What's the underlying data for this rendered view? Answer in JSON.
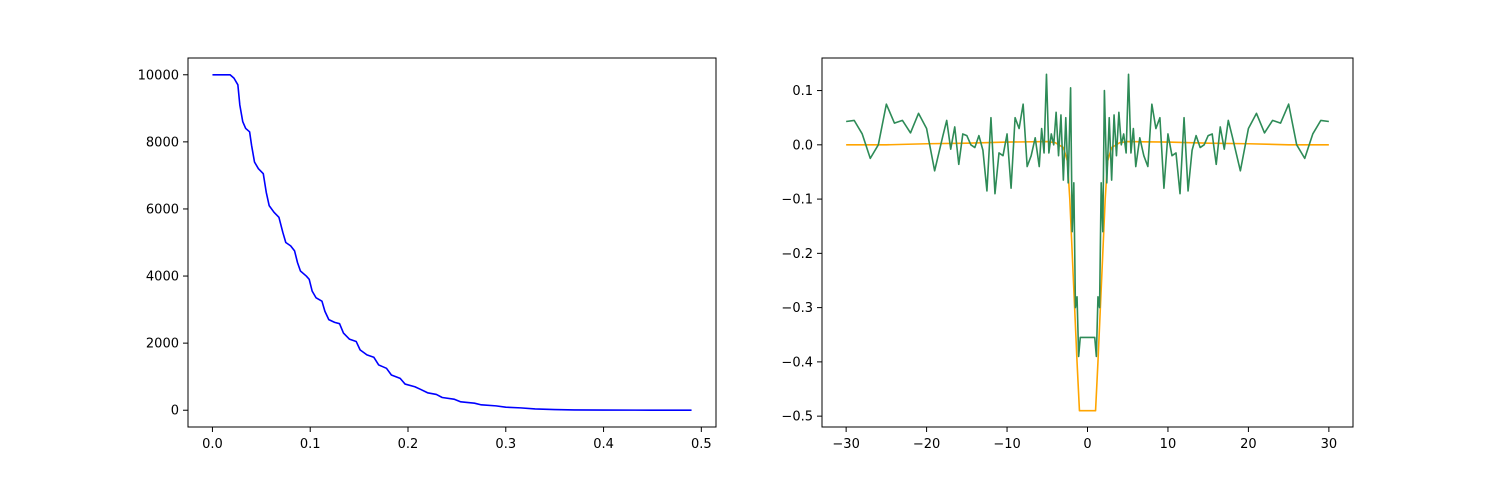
{
  "chart_data": [
    {
      "type": "line",
      "title": "",
      "xlabel": "",
      "ylabel": "",
      "xlim": [
        -0.025,
        0.515
      ],
      "ylim": [
        -500,
        10500
      ],
      "grid": false,
      "x_ticks": [
        0.0,
        0.1,
        0.2,
        0.3,
        0.4,
        0.5
      ],
      "x_tick_labels": [
        "0.0",
        "0.1",
        "0.2",
        "0.3",
        "0.4",
        "0.5"
      ],
      "y_ticks": [
        0,
        2000,
        4000,
        6000,
        8000,
        10000
      ],
      "y_tick_labels": [
        "0",
        "2000",
        "4000",
        "6000",
        "8000",
        "10000"
      ],
      "series": [
        {
          "color": "#0000ff",
          "points": [
            [
              0.0,
              10000
            ],
            [
              0.018,
              10000
            ],
            [
              0.022,
              9900
            ],
            [
              0.026,
              9700
            ],
            [
              0.028,
              9100
            ],
            [
              0.031,
              8600
            ],
            [
              0.034,
              8400
            ],
            [
              0.038,
              8300
            ],
            [
              0.04,
              7900
            ],
            [
              0.043,
              7400
            ],
            [
              0.047,
              7200
            ],
            [
              0.052,
              7050
            ],
            [
              0.055,
              6500
            ],
            [
              0.058,
              6100
            ],
            [
              0.063,
              5900
            ],
            [
              0.068,
              5750
            ],
            [
              0.072,
              5300
            ],
            [
              0.075,
              5000
            ],
            [
              0.08,
              4900
            ],
            [
              0.084,
              4750
            ],
            [
              0.087,
              4400
            ],
            [
              0.09,
              4150
            ],
            [
              0.096,
              4000
            ],
            [
              0.099,
              3900
            ],
            [
              0.102,
              3550
            ],
            [
              0.106,
              3350
            ],
            [
              0.112,
              3250
            ],
            [
              0.115,
              2950
            ],
            [
              0.119,
              2700
            ],
            [
              0.125,
              2620
            ],
            [
              0.13,
              2580
            ],
            [
              0.134,
              2300
            ],
            [
              0.14,
              2120
            ],
            [
              0.147,
              2050
            ],
            [
              0.151,
              1800
            ],
            [
              0.158,
              1650
            ],
            [
              0.165,
              1580
            ],
            [
              0.17,
              1350
            ],
            [
              0.178,
              1250
            ],
            [
              0.183,
              1050
            ],
            [
              0.192,
              950
            ],
            [
              0.197,
              780
            ],
            [
              0.207,
              700
            ],
            [
              0.213,
              620
            ],
            [
              0.22,
              520
            ],
            [
              0.229,
              470
            ],
            [
              0.235,
              380
            ],
            [
              0.247,
              330
            ],
            [
              0.254,
              250
            ],
            [
              0.268,
              210
            ],
            [
              0.275,
              160
            ],
            [
              0.29,
              130
            ],
            [
              0.3,
              90
            ],
            [
              0.315,
              70
            ],
            [
              0.33,
              40
            ],
            [
              0.35,
              20
            ],
            [
              0.37,
              10
            ],
            [
              0.4,
              5
            ],
            [
              0.45,
              2
            ],
            [
              0.49,
              0
            ]
          ]
        }
      ]
    },
    {
      "type": "line",
      "title": "",
      "xlabel": "",
      "ylabel": "",
      "xlim": [
        -33,
        33
      ],
      "ylim": [
        -0.52,
        0.16
      ],
      "grid": false,
      "x_ticks": [
        -30,
        -20,
        -10,
        0,
        10,
        20,
        30
      ],
      "x_tick_labels": [
        "−30",
        "−20",
        "−10",
        "0",
        "10",
        "20",
        "30"
      ],
      "y_ticks": [
        0.1,
        0.0,
        -0.1,
        -0.2,
        -0.3,
        -0.4,
        -0.5
      ],
      "y_tick_labels": [
        "0.1",
        "0.0",
        "−0.1",
        "−0.2",
        "−0.3",
        "−0.4",
        "−0.5"
      ],
      "series": [
        {
          "color": "#ffa500",
          "points": [
            [
              -30,
              0.0
            ],
            [
              -25,
              0.0
            ],
            [
              -20,
              0.002
            ],
            [
              -15,
              0.003
            ],
            [
              -10,
              0.005
            ],
            [
              -5,
              0.006
            ],
            [
              -4,
              0.004
            ],
            [
              -3,
              -0.005
            ],
            [
              -2.5,
              -0.03
            ],
            [
              -2.2,
              -0.1
            ],
            [
              -1.9,
              -0.2
            ],
            [
              -1.6,
              -0.3
            ],
            [
              -1.3,
              -0.4
            ],
            [
              -1.0,
              -0.49
            ],
            [
              1.0,
              -0.49
            ],
            [
              1.3,
              -0.4
            ],
            [
              1.6,
              -0.3
            ],
            [
              1.9,
              -0.2
            ],
            [
              2.2,
              -0.1
            ],
            [
              2.5,
              -0.03
            ],
            [
              3,
              -0.005
            ],
            [
              4,
              0.004
            ],
            [
              5,
              0.006
            ],
            [
              10,
              0.005
            ],
            [
              15,
              0.003
            ],
            [
              20,
              0.002
            ],
            [
              25,
              0.0
            ],
            [
              30,
              0.0
            ]
          ]
        },
        {
          "color": "#2e8b57",
          "points": [
            [
              -30,
              0.043
            ],
            [
              -29,
              0.045
            ],
            [
              -28,
              0.02
            ],
            [
              -27,
              -0.025
            ],
            [
              -26,
              0.0
            ],
            [
              -25,
              0.075
            ],
            [
              -24,
              0.04
            ],
            [
              -23,
              0.045
            ],
            [
              -22,
              0.022
            ],
            [
              -21,
              0.058
            ],
            [
              -20,
              0.03
            ],
            [
              -19,
              -0.048
            ],
            [
              -18,
              0.015
            ],
            [
              -17.5,
              0.045
            ],
            [
              -17,
              -0.008
            ],
            [
              -16.5,
              0.033
            ],
            [
              -16,
              -0.036
            ],
            [
              -15.5,
              0.02
            ],
            [
              -15,
              0.017
            ],
            [
              -14.5,
              0.0
            ],
            [
              -14,
              -0.005
            ],
            [
              -13.5,
              0.017
            ],
            [
              -13,
              -0.01
            ],
            [
              -12.5,
              -0.085
            ],
            [
              -12,
              0.05
            ],
            [
              -11.5,
              -0.09
            ],
            [
              -11,
              -0.015
            ],
            [
              -10.5,
              -0.02
            ],
            [
              -10,
              0.02
            ],
            [
              -9.5,
              -0.08
            ],
            [
              -9,
              0.05
            ],
            [
              -8.5,
              0.03
            ],
            [
              -8,
              0.075
            ],
            [
              -7.5,
              -0.04
            ],
            [
              -7,
              -0.02
            ],
            [
              -6.5,
              0.013
            ],
            [
              -6,
              -0.04
            ],
            [
              -5.7,
              0.03
            ],
            [
              -5.4,
              -0.015
            ],
            [
              -5.1,
              0.13
            ],
            [
              -4.8,
              -0.015
            ],
            [
              -4.5,
              0.02
            ],
            [
              -4.2,
              0.0
            ],
            [
              -3.9,
              0.06
            ],
            [
              -3.6,
              -0.02
            ],
            [
              -3.3,
              0.055
            ],
            [
              -3.0,
              -0.065
            ],
            [
              -2.7,
              0.05
            ],
            [
              -2.4,
              -0.07
            ],
            [
              -2.1,
              0.105
            ],
            [
              -1.9,
              -0.16
            ],
            [
              -1.7,
              -0.07
            ],
            [
              -1.5,
              -0.3
            ],
            [
              -1.3,
              -0.28
            ],
            [
              -1.1,
              -0.39
            ],
            [
              -0.9,
              -0.355
            ],
            [
              0.9,
              -0.355
            ],
            [
              1.1,
              -0.39
            ],
            [
              1.3,
              -0.28
            ],
            [
              1.5,
              -0.3
            ],
            [
              1.7,
              -0.07
            ],
            [
              1.9,
              -0.16
            ],
            [
              2.1,
              0.1
            ],
            [
              2.4,
              -0.07
            ],
            [
              2.7,
              0.05
            ],
            [
              3.0,
              -0.065
            ],
            [
              3.3,
              0.055
            ],
            [
              3.6,
              -0.02
            ],
            [
              3.9,
              0.06
            ],
            [
              4.2,
              0.0
            ],
            [
              4.5,
              0.02
            ],
            [
              4.8,
              -0.015
            ],
            [
              5.1,
              0.13
            ],
            [
              5.4,
              -0.015
            ],
            [
              5.7,
              0.03
            ],
            [
              6,
              -0.04
            ],
            [
              6.5,
              0.013
            ],
            [
              7,
              -0.02
            ],
            [
              7.5,
              -0.04
            ],
            [
              8,
              0.075
            ],
            [
              8.5,
              0.03
            ],
            [
              9,
              0.05
            ],
            [
              9.5,
              -0.08
            ],
            [
              10,
              0.02
            ],
            [
              10.5,
              -0.02
            ],
            [
              11,
              -0.015
            ],
            [
              11.5,
              -0.09
            ],
            [
              12,
              0.05
            ],
            [
              12.5,
              -0.085
            ],
            [
              13,
              -0.01
            ],
            [
              13.5,
              0.017
            ],
            [
              14,
              -0.005
            ],
            [
              14.5,
              0.0
            ],
            [
              15,
              0.017
            ],
            [
              15.5,
              0.02
            ],
            [
              16,
              -0.036
            ],
            [
              16.5,
              0.033
            ],
            [
              17,
              -0.008
            ],
            [
              17.5,
              0.045
            ],
            [
              18,
              0.015
            ],
            [
              19,
              -0.048
            ],
            [
              20,
              0.03
            ],
            [
              21,
              0.058
            ],
            [
              22,
              0.022
            ],
            [
              23,
              0.045
            ],
            [
              24,
              0.04
            ],
            [
              25,
              0.075
            ],
            [
              26,
              0.0
            ],
            [
              27,
              -0.025
            ],
            [
              28,
              0.02
            ],
            [
              29,
              0.045
            ],
            [
              30,
              0.043
            ]
          ]
        }
      ]
    }
  ]
}
